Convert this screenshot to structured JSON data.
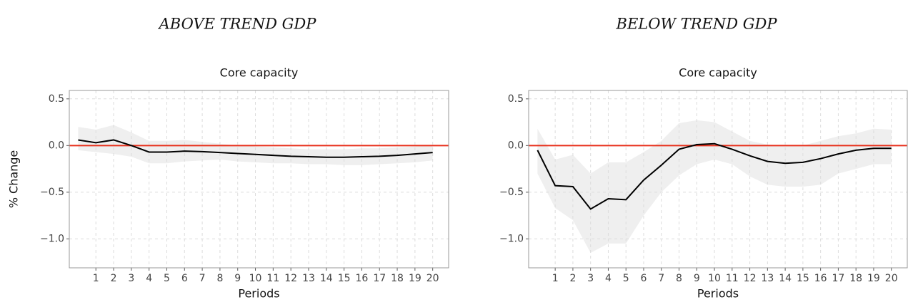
{
  "chart_data": [
    {
      "type": "line",
      "header": "ABOVE TREND GDP",
      "title": "Core capacity",
      "xlabel": "Periods",
      "ylabel": "% Change",
      "x": [
        0,
        1,
        2,
        3,
        4,
        5,
        6,
        7,
        8,
        9,
        10,
        11,
        12,
        13,
        14,
        15,
        16,
        17,
        18,
        19,
        20
      ],
      "xlim": [
        -0.5,
        20.9
      ],
      "xticks": [
        1,
        2,
        3,
        4,
        5,
        6,
        7,
        8,
        9,
        10,
        11,
        12,
        13,
        14,
        15,
        16,
        17,
        18,
        19,
        20
      ],
      "ylim": [
        -1.31,
        0.59
      ],
      "yticks": [
        {
          "value": 0.5,
          "label": "0.5"
        },
        {
          "value": 0,
          "label": "0.0"
        },
        {
          "value": -0.5,
          "label": "−0.5"
        },
        {
          "value": -1,
          "label": "−1.0"
        }
      ],
      "grid": true,
      "hline": 0,
      "hline_color": "#e8301c",
      "band_color": "#efefef",
      "series": [
        {
          "color": "#000000",
          "values": [
            0.06,
            0.03,
            0.06,
            0.0,
            -0.07,
            -0.07,
            -0.06,
            -0.065,
            -0.075,
            -0.085,
            -0.095,
            -0.105,
            -0.115,
            -0.12,
            -0.125,
            -0.125,
            -0.12,
            -0.115,
            -0.105,
            -0.09,
            -0.075
          ],
          "lower": [
            -0.05,
            -0.07,
            -0.09,
            -0.12,
            -0.19,
            -0.19,
            -0.17,
            -0.16,
            -0.15,
            -0.17,
            -0.18,
            -0.19,
            -0.19,
            -0.2,
            -0.2,
            -0.21,
            -0.21,
            -0.2,
            -0.19,
            -0.18,
            -0.16
          ],
          "upper": [
            0.2,
            0.17,
            0.22,
            0.14,
            0.05,
            0.05,
            0.06,
            0.04,
            0.02,
            0.0,
            -0.01,
            -0.02,
            -0.03,
            -0.04,
            -0.04,
            -0.04,
            -0.03,
            -0.03,
            -0.02,
            -0.01,
            0.0
          ]
        }
      ]
    },
    {
      "type": "line",
      "header": "BELOW TREND GDP",
      "title": "Core capacity",
      "xlabel": "Periods",
      "x": [
        0,
        1,
        2,
        3,
        4,
        5,
        6,
        7,
        8,
        9,
        10,
        11,
        12,
        13,
        14,
        15,
        16,
        17,
        18,
        19,
        20
      ],
      "xlim": [
        -0.5,
        20.9
      ],
      "xticks": [
        1,
        2,
        3,
        4,
        5,
        6,
        7,
        8,
        9,
        10,
        11,
        12,
        13,
        14,
        15,
        16,
        17,
        18,
        19,
        20
      ],
      "ylim": [
        -1.31,
        0.59
      ],
      "yticks": [
        {
          "value": 0.5,
          "label": "0.5"
        },
        {
          "value": 0,
          "label": "0.0"
        },
        {
          "value": -0.5,
          "label": "−0.5"
        },
        {
          "value": -1,
          "label": "−1.0"
        }
      ],
      "grid": true,
      "hline": 0,
      "hline_color": "#e8301c",
      "band_color": "#efefef",
      "series": [
        {
          "color": "#000000",
          "values": [
            -0.05,
            -0.43,
            -0.44,
            -0.68,
            -0.57,
            -0.58,
            -0.37,
            -0.21,
            -0.04,
            0.01,
            0.02,
            -0.04,
            -0.11,
            -0.17,
            -0.19,
            -0.18,
            -0.14,
            -0.09,
            -0.05,
            -0.03,
            -0.03
          ],
          "lower": [
            -0.3,
            -0.67,
            -0.8,
            -1.15,
            -1.05,
            -1.05,
            -0.75,
            -0.5,
            -0.32,
            -0.2,
            -0.15,
            -0.2,
            -0.33,
            -0.42,
            -0.44,
            -0.44,
            -0.42,
            -0.3,
            -0.25,
            -0.2,
            -0.2
          ],
          "upper": [
            0.18,
            -0.15,
            -0.1,
            -0.3,
            -0.18,
            -0.18,
            -0.07,
            0.05,
            0.24,
            0.27,
            0.25,
            0.15,
            0.05,
            0.01,
            0.0,
            0.0,
            0.05,
            0.1,
            0.13,
            0.18,
            0.17
          ]
        }
      ]
    }
  ]
}
